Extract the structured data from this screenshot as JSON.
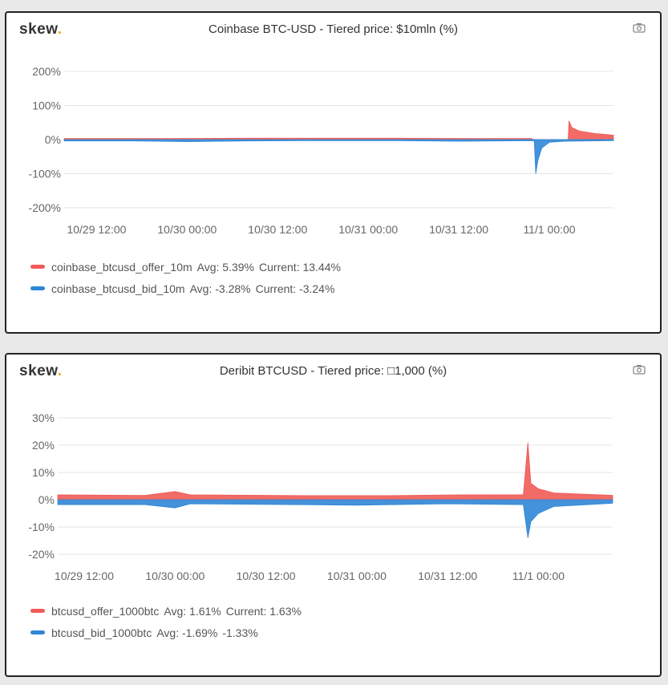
{
  "colors": {
    "offer": "#ef5b57",
    "bid": "#2f86d6",
    "grid": "#e6e6e6"
  },
  "chart_data": [
    {
      "type": "area",
      "logo": "skew",
      "title": "Coinbase BTC-USD - Tiered price: $10mln (%)",
      "ylim": [
        -200,
        200
      ],
      "yticks": [
        200,
        100,
        0,
        -100,
        -200
      ],
      "ytick_labels": [
        "200%",
        "100%",
        "0%",
        "-100%",
        "-200%"
      ],
      "x_unit": "hours since 10/29 12:00",
      "xlim": [
        -4.3,
        68.5
      ],
      "xticks": [
        0,
        12,
        24,
        36,
        48,
        60
      ],
      "xtick_labels": [
        "10/29 12:00",
        "10/30 00:00",
        "10/30 12:00",
        "10/31 00:00",
        "10/31 12:00",
        "11/1 00:00"
      ],
      "series": [
        {
          "name": "coinbase_btcusd_offer_10m",
          "avg": "Avg: 5.39%",
          "current": "Current: 13.44%",
          "color": "offer",
          "points": [
            [
              -4.3,
              3
            ],
            [
              10,
              3
            ],
            [
              20,
              4
            ],
            [
              30,
              4
            ],
            [
              40,
              4
            ],
            [
              50,
              3
            ],
            [
              57.7,
              3
            ],
            [
              57.8,
              0
            ],
            [
              62.5,
              0
            ],
            [
              62.6,
              55
            ],
            [
              63,
              35
            ],
            [
              64,
              25
            ],
            [
              66,
              18
            ],
            [
              68.5,
              13
            ]
          ]
        },
        {
          "name": "coinbase_btcusd_bid_10m",
          "avg": "Avg: -3.28%",
          "current": "Current: -3.24%",
          "color": "bid",
          "points": [
            [
              -4.3,
              -4
            ],
            [
              5,
              -4
            ],
            [
              12,
              -6
            ],
            [
              20,
              -4
            ],
            [
              30,
              -3
            ],
            [
              40,
              -3
            ],
            [
              48,
              -5
            ],
            [
              58,
              -3
            ],
            [
              58.2,
              -100
            ],
            [
              58.5,
              -60
            ],
            [
              59,
              -25
            ],
            [
              60,
              -8
            ],
            [
              62,
              -5
            ],
            [
              68.5,
              -3
            ]
          ]
        }
      ]
    },
    {
      "type": "area",
      "logo": "skew",
      "title": "Deribit BTCUSD - Tiered price: □1,000 (%)",
      "ylim": [
        -20,
        30
      ],
      "yticks": [
        30,
        20,
        10,
        0,
        -10,
        -20
      ],
      "ytick_labels": [
        "30%",
        "20%",
        "10%",
        "0%",
        "-10%",
        "-20%"
      ],
      "x_unit": "hours since 10/29 12:00",
      "xlim": [
        -3.5,
        69.8
      ],
      "xticks": [
        0,
        12,
        24,
        36,
        48,
        60
      ],
      "xtick_labels": [
        "10/29 12:00",
        "10/30 00:00",
        "10/30 12:00",
        "10/31 00:00",
        "10/31 12:00",
        "11/1 00:00"
      ],
      "series": [
        {
          "name": "btcusd_offer_1000btc",
          "avg": "Avg: 1.61%",
          "current": "Current: 1.63%",
          "color": "offer",
          "points": [
            [
              -3.5,
              1.8
            ],
            [
              8,
              1.6
            ],
            [
              12,
              3
            ],
            [
              14,
              1.8
            ],
            [
              30,
              1.5
            ],
            [
              40,
              1.5
            ],
            [
              50,
              1.8
            ],
            [
              58,
              1.8
            ],
            [
              58.6,
              21
            ],
            [
              59,
              6
            ],
            [
              60,
              4
            ],
            [
              62,
              2.5
            ],
            [
              69.8,
              1.6
            ]
          ]
        },
        {
          "name": "btcusd_bid_1000btc",
          "avg": "Avg: -1.69%",
          "current": "-1.33%",
          "color": "bid",
          "points": [
            [
              -3.5,
              -1.8
            ],
            [
              8,
              -1.8
            ],
            [
              12,
              -3
            ],
            [
              14,
              -1.5
            ],
            [
              24,
              -1.7
            ],
            [
              36,
              -2
            ],
            [
              48,
              -1.5
            ],
            [
              58,
              -1.8
            ],
            [
              58.6,
              -14
            ],
            [
              59,
              -8
            ],
            [
              60,
              -5
            ],
            [
              62,
              -2.5
            ],
            [
              69.8,
              -1.3
            ]
          ]
        }
      ]
    }
  ]
}
